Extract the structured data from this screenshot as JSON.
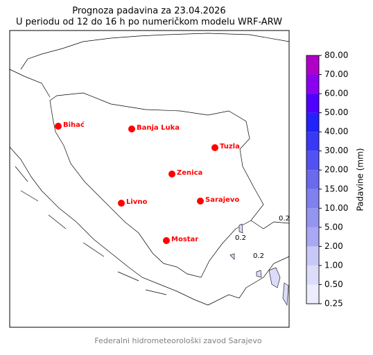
{
  "header": {
    "title": "Prognoza padavina za 23.04.2026",
    "subtitle": "U periodu od 12 do 16 h po numeričkom modelu WRF-ARW"
  },
  "map": {
    "cities": [
      "Bihać",
      "Banja Luka",
      "Tuzla",
      "Zenica",
      "Livno",
      "Sarajevo",
      "Mostar"
    ],
    "contour_labels": [
      "0.2",
      "0.2",
      "0.2"
    ]
  },
  "colorbar": {
    "label": "Padavine (mm)",
    "ticks": [
      {
        "value": 0.25,
        "label": "0.25"
      },
      {
        "value": 0.5,
        "label": "0.50"
      },
      {
        "value": 1,
        "label": "1.00"
      },
      {
        "value": 2,
        "label": "2.00"
      },
      {
        "value": 5,
        "label": "5.00"
      },
      {
        "value": 10,
        "label": "10.00"
      },
      {
        "value": 15,
        "label": "15.00"
      },
      {
        "value": 20,
        "label": "20.00"
      },
      {
        "value": 30,
        "label": "30.00"
      },
      {
        "value": 40,
        "label": "40.00"
      },
      {
        "value": 50,
        "label": "50.00"
      },
      {
        "value": 60,
        "label": "60.00"
      },
      {
        "value": 70,
        "label": "70.00"
      },
      {
        "value": 80,
        "label": "80.00"
      }
    ],
    "colors": [
      "#ececfd",
      "#dcdcfa",
      "#c8c8f8",
      "#a8a8f4",
      "#9494f1",
      "#8080ef",
      "#6a6aee",
      "#5252f2",
      "#3838f6",
      "#2222fa",
      "#5000ff",
      "#8a00f0",
      "#b000c8"
    ]
  },
  "footer": "Federalni hidrometeorološki zavod Sarajevo"
}
